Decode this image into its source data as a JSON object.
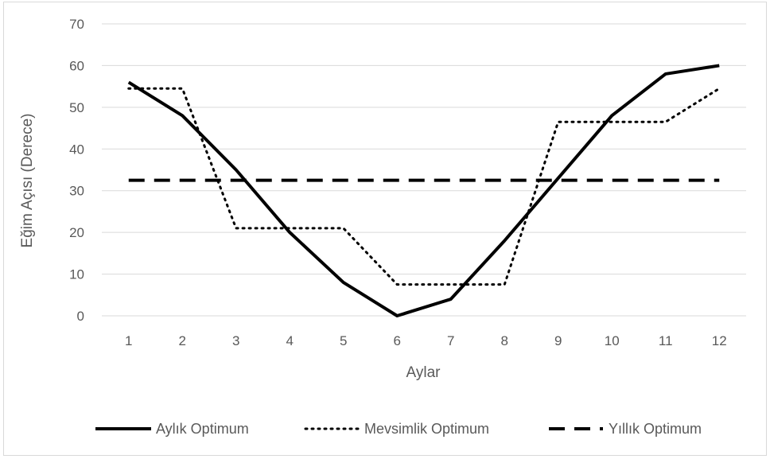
{
  "chart_data": {
    "type": "line",
    "xlabel": "Aylar",
    "ylabel": "Eğim Açısı (Derece)",
    "x": [
      1,
      2,
      3,
      4,
      5,
      6,
      7,
      8,
      9,
      10,
      11,
      12
    ],
    "ylim": [
      0,
      70
    ],
    "yticks": [
      0,
      10,
      20,
      30,
      40,
      50,
      60,
      70
    ],
    "grid": true,
    "legend_position": "bottom",
    "series": [
      {
        "name": "Aylık Optimum",
        "style": "solid",
        "color": "#000000",
        "values": [
          56,
          48,
          35,
          20,
          8,
          0,
          4,
          18,
          33,
          48,
          58,
          60
        ]
      },
      {
        "name": "Mevsimlik Optimum",
        "style": "dotted",
        "color": "#000000",
        "values": [
          54.5,
          54.5,
          21,
          21,
          21,
          7.5,
          7.5,
          7.5,
          46.5,
          46.5,
          46.5,
          54.5
        ]
      },
      {
        "name": "Yıllık Optimum",
        "style": "dashed",
        "color": "#000000",
        "values": [
          32.5,
          32.5,
          32.5,
          32.5,
          32.5,
          32.5,
          32.5,
          32.5,
          32.5,
          32.5,
          32.5,
          32.5
        ]
      }
    ]
  }
}
